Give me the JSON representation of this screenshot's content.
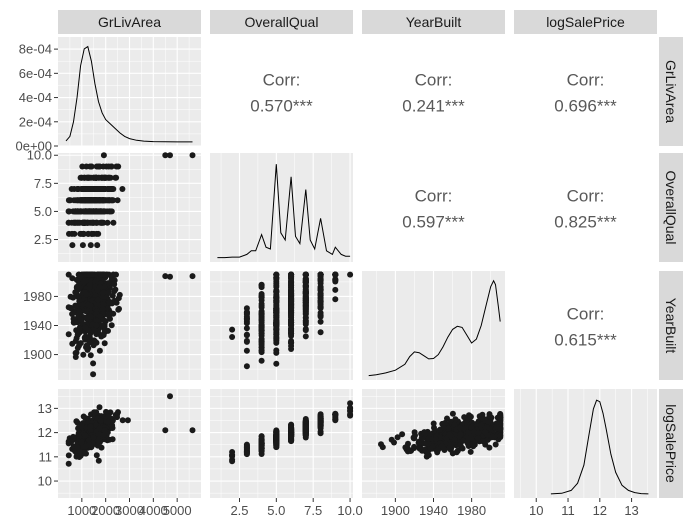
{
  "chart_data": {
    "type": "scatter-matrix",
    "title": "",
    "variables": [
      "GrLivArea",
      "OverallQual",
      "YearBuilt",
      "logSalePrice"
    ],
    "colors": {
      "panel_bg": "#ebebeb",
      "grid_major": "#ffffff",
      "strip_bg": "#d9d9d9",
      "point": "#1a1a1a",
      "corr_text": "#595959"
    },
    "axes": {
      "GrLivArea": {
        "range": [
          0,
          6000
        ],
        "ticks": [
          1000,
          2000,
          3000,
          4000,
          5000
        ],
        "tick_labels": [
          "1000",
          "2000",
          "3000",
          "4000",
          "5000"
        ]
      },
      "OverallQual": {
        "range": [
          0.5,
          10.2
        ],
        "ticks": [
          2.5,
          5.0,
          7.5,
          10.0
        ],
        "tick_labels": [
          "2.5",
          "5.0",
          "7.5",
          "10.0"
        ]
      },
      "YearBuilt": {
        "range": [
          1865,
          2015
        ],
        "ticks": [
          1900,
          1940,
          1980
        ],
        "tick_labels": [
          "1900",
          "1940",
          "1980"
        ]
      },
      "logSalePrice": {
        "range": [
          9.3,
          13.8
        ],
        "ticks": [
          10,
          11,
          12,
          13
        ],
        "tick_labels": [
          "10",
          "11",
          "12",
          "13"
        ]
      },
      "density_y": {
        "range": [
          0,
          0.0009
        ],
        "ticks": [
          0,
          0.0002,
          0.0004,
          0.0006,
          0.0008
        ],
        "tick_labels": [
          "0e+00",
          "2e-04",
          "4e-04",
          "6e-04",
          "8e-04"
        ]
      }
    },
    "correlations": [
      {
        "row": 0,
        "col": 1,
        "label": "Corr:",
        "value": "0.570***"
      },
      {
        "row": 0,
        "col": 2,
        "label": "Corr:",
        "value": "0.241***"
      },
      {
        "row": 0,
        "col": 3,
        "label": "Corr:",
        "value": "0.696***"
      },
      {
        "row": 1,
        "col": 2,
        "label": "Corr:",
        "value": "0.597***"
      },
      {
        "row": 1,
        "col": 3,
        "label": "Corr:",
        "value": "0.825***"
      },
      {
        "row": 2,
        "col": 3,
        "label": "Corr:",
        "value": "0.615***"
      }
    ],
    "densities": {
      "GrLivArea": {
        "x": [
          334,
          500,
          650,
          800,
          950,
          1100,
          1250,
          1400,
          1550,
          1700,
          1850,
          2000,
          2200,
          2400,
          2600,
          2800,
          3000,
          3300,
          3600,
          4000,
          4500,
          5000,
          5642
        ],
        "y": [
          1e-05,
          5e-05,
          0.00018,
          0.0004,
          0.00068,
          0.00083,
          0.00085,
          0.00072,
          0.00052,
          0.00036,
          0.00026,
          0.0002,
          0.00016,
          0.00012,
          8e-05,
          5e-05,
          3e-05,
          1.5e-05,
          8e-06,
          4e-06,
          2e-06,
          1e-06,
          5e-07
        ]
      },
      "OverallQual": {
        "x": [
          1.0,
          1.5,
          2.0,
          2.5,
          3.0,
          3.3,
          3.6,
          4.0,
          4.3,
          4.6,
          5.0,
          5.3,
          5.6,
          6.0,
          6.3,
          6.6,
          7.0,
          7.3,
          7.6,
          8.0,
          8.4,
          8.8,
          9.0,
          9.4,
          9.7,
          10.0
        ],
        "y": [
          0.002,
          0.002,
          0.005,
          0.005,
          0.02,
          0.04,
          0.04,
          0.13,
          0.06,
          0.05,
          0.52,
          0.14,
          0.1,
          0.45,
          0.12,
          0.08,
          0.38,
          0.1,
          0.05,
          0.22,
          0.04,
          0.02,
          0.06,
          0.02,
          0.01,
          0.01
        ],
        "ylim": [
          0,
          0.56
        ]
      },
      "YearBuilt": {
        "x": [
          1872,
          1880,
          1890,
          1900,
          1910,
          1915,
          1920,
          1925,
          1930,
          1935,
          1940,
          1945,
          1950,
          1955,
          1960,
          1965,
          1970,
          1975,
          1980,
          1985,
          1990,
          1995,
          2000,
          2003,
          2005,
          2008,
          2010
        ],
        "y": [
          0.0001,
          0.0003,
          0.0008,
          0.0015,
          0.003,
          0.005,
          0.0062,
          0.006,
          0.0052,
          0.0044,
          0.0045,
          0.0055,
          0.0075,
          0.01,
          0.012,
          0.0128,
          0.0125,
          0.0105,
          0.0085,
          0.0095,
          0.013,
          0.018,
          0.023,
          0.0245,
          0.0235,
          0.018,
          0.014
        ],
        "ylim": [
          0,
          0.026
        ]
      },
      "logSalePrice": {
        "x": [
          10.46,
          10.8,
          11.1,
          11.3,
          11.5,
          11.65,
          11.8,
          11.9,
          12.0,
          12.1,
          12.2,
          12.35,
          12.5,
          12.7,
          12.9,
          13.1,
          13.3,
          13.53
        ],
        "y": [
          0.002,
          0.01,
          0.05,
          0.15,
          0.4,
          0.8,
          1.18,
          1.3,
          1.28,
          1.12,
          0.9,
          0.55,
          0.3,
          0.12,
          0.05,
          0.02,
          0.006,
          0.002
        ],
        "ylim": [
          0,
          1.4
        ]
      }
    }
  }
}
